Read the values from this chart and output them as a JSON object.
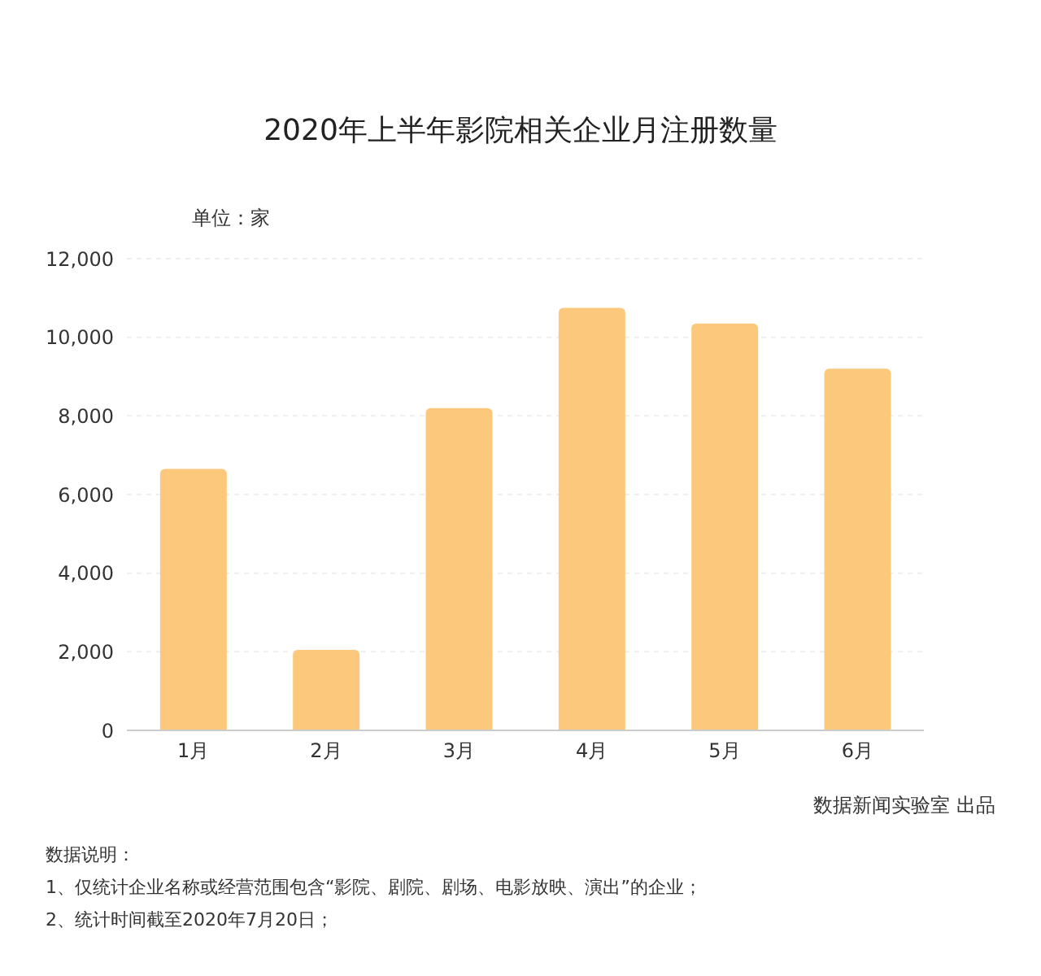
{
  "chart_data": {
    "type": "bar",
    "title": "2020年上半年影院相关企业月注册数量",
    "ylabel": "单位：家",
    "categories": [
      "1月",
      "2月",
      "3月",
      "4月",
      "5月",
      "6月"
    ],
    "values": [
      6650,
      2050,
      8200,
      10750,
      10350,
      9200
    ],
    "color": "#fcc97c",
    "ylim": [
      0,
      12000
    ],
    "yticks": [
      {
        "value": 0,
        "label": "0"
      },
      {
        "value": 2000,
        "label": "2,000"
      },
      {
        "value": 4000,
        "label": "4,000"
      },
      {
        "value": 6000,
        "label": "6,000"
      },
      {
        "value": 8000,
        "label": "8,000"
      },
      {
        "value": 10000,
        "label": "10,000"
      },
      {
        "value": 12000,
        "label": "12,000"
      }
    ],
    "grid": "y",
    "annotations": [
      "数据新闻实验室 出品",
      "数据说明：",
      "1、仅统计企业名称或经营范围包含“影院、剧院、剧场、电影放映、演出”的企业；",
      "2、统计时间截至2020年7月20日；"
    ]
  }
}
